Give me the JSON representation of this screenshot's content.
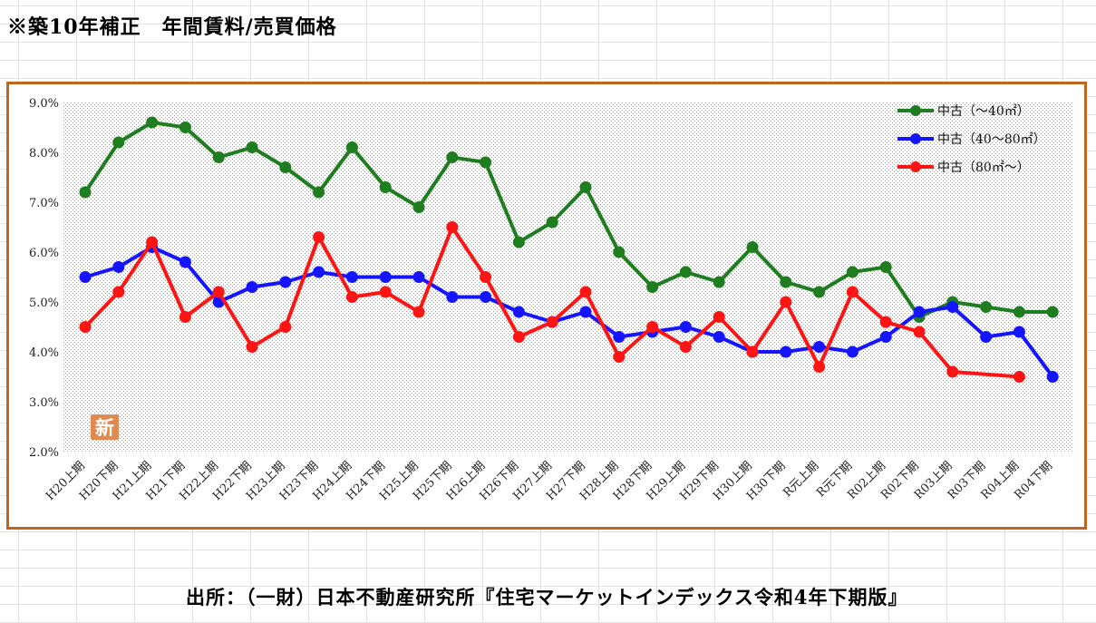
{
  "title": "※築10年補正　年間賃料/売買価格",
  "source": "出所：（一財）日本不動産研究所『住宅マーケットインデックス令和4年下期版』",
  "new_badge": "新",
  "chart_data": {
    "type": "line",
    "title": "",
    "xlabel": "",
    "ylabel": "",
    "ylim": [
      2.0,
      9.0
    ],
    "yticks": [
      "2.0%",
      "3.0%",
      "4.0%",
      "5.0%",
      "6.0%",
      "7.0%",
      "8.0%",
      "9.0%"
    ],
    "grid": false,
    "legend_position": "top-right",
    "categories": [
      "H20上期",
      "H20下期",
      "H21上期",
      "H21下期",
      "H22上期",
      "H22下期",
      "H23上期",
      "H23下期",
      "H24上期",
      "H24下期",
      "H25上期",
      "H25下期",
      "H26上期",
      "H26下期",
      "H27上期",
      "H27下期",
      "H28上期",
      "H28下期",
      "H29上期",
      "H29下期",
      "H30上期",
      "H30下期",
      "R元上期",
      "R元下期",
      "R02上期",
      "R02下期",
      "R03上期",
      "R03下期",
      "R04上期",
      "R04下期"
    ],
    "series": [
      {
        "name": "中古（～40㎡）",
        "color": "#1e7d1e",
        "values": [
          7.2,
          8.2,
          8.6,
          8.5,
          7.9,
          8.1,
          7.7,
          7.2,
          8.1,
          7.3,
          6.9,
          7.9,
          7.8,
          6.2,
          6.6,
          7.3,
          6.0,
          5.3,
          5.6,
          5.4,
          6.1,
          5.4,
          5.2,
          5.6,
          5.7,
          4.7,
          5.0,
          4.9,
          4.8,
          4.8
        ]
      },
      {
        "name": "中古（40～80㎡）",
        "color": "#1414ff",
        "values": [
          5.5,
          5.7,
          6.1,
          5.8,
          5.0,
          5.3,
          5.4,
          5.6,
          5.5,
          5.5,
          5.5,
          5.1,
          5.1,
          4.8,
          4.6,
          4.8,
          4.3,
          4.4,
          4.5,
          4.3,
          4.0,
          4.0,
          4.1,
          4.0,
          4.3,
          4.8,
          4.9,
          4.3,
          4.4,
          3.5
        ]
      },
      {
        "name": "中古（80㎡～）",
        "color": "#ff1414",
        "values": [
          4.5,
          5.2,
          6.2,
          4.7,
          5.2,
          4.1,
          4.5,
          6.3,
          5.1,
          5.2,
          4.8,
          6.5,
          5.5,
          4.3,
          4.6,
          5.2,
          3.9,
          4.5,
          4.1,
          4.7,
          4.0,
          5.0,
          3.7,
          5.2,
          4.6,
          4.4,
          3.6,
          null,
          3.5,
          null
        ]
      }
    ]
  }
}
